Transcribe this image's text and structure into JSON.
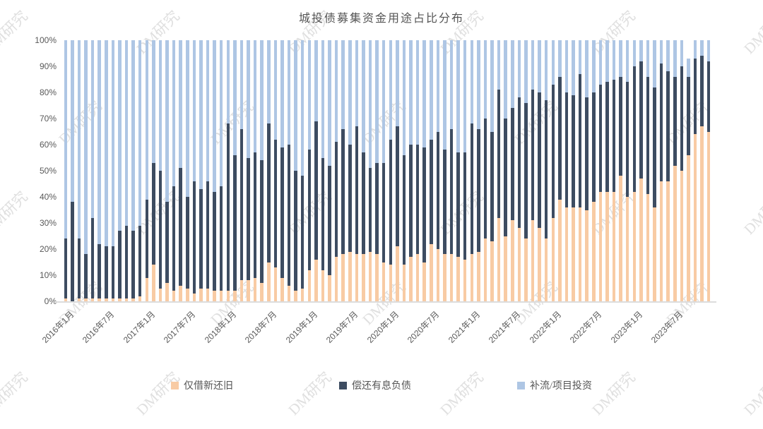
{
  "watermark": {
    "text": "DM研究",
    "color": "#e0e0e0"
  },
  "colors": {
    "axis_text": "#595959",
    "axis_line": "#dcdcdc",
    "title_text": "#555555",
    "only_refinance": "#f8cba4",
    "repay_debt": "#3d4c61",
    "working_capital": "#aec6e4"
  },
  "chart_data": {
    "type": "bar",
    "stacked": true,
    "title": "城投债募集资金用途占比分布",
    "xlabel": "",
    "ylabel": "",
    "ylim": [
      0,
      100
    ],
    "unit": "%",
    "grid": false,
    "legend_position": "bottom",
    "y_ticks": [
      "0%",
      "10%",
      "20%",
      "30%",
      "40%",
      "50%",
      "60%",
      "70%",
      "80%",
      "90%",
      "100%"
    ],
    "x_tick_labels": [
      "2016年1月",
      "2016年7月",
      "2017年1月",
      "2017年7月",
      "2018年1月",
      "2018年7月",
      "2019年1月",
      "2019年7月",
      "2020年1月",
      "2020年7月",
      "2021年1月",
      "2021年7月",
      "2022年1月",
      "2022年7月",
      "2023年1月",
      "2023年7月"
    ],
    "x_tick_every": 6,
    "x": [
      "2016年1月",
      "2016年2月",
      "2016年3月",
      "2016年4月",
      "2016年5月",
      "2016年6月",
      "2016年7月",
      "2016年8月",
      "2016年9月",
      "2016年10月",
      "2016年11月",
      "2016年12月",
      "2017年1月",
      "2017年2月",
      "2017年3月",
      "2017年4月",
      "2017年5月",
      "2017年6月",
      "2017年7月",
      "2017年8月",
      "2017年9月",
      "2017年10月",
      "2017年11月",
      "2017年12月",
      "2018年1月",
      "2018年2月",
      "2018年3月",
      "2018年4月",
      "2018年5月",
      "2018年6月",
      "2018年7月",
      "2018年8月",
      "2018年9月",
      "2018年10月",
      "2018年11月",
      "2018年12月",
      "2019年1月",
      "2019年2月",
      "2019年3月",
      "2019年4月",
      "2019年5月",
      "2019年6月",
      "2019年7月",
      "2019年8月",
      "2019年9月",
      "2019年10月",
      "2019年11月",
      "2019年12月",
      "2020年1月",
      "2020年2月",
      "2020年3月",
      "2020年4月",
      "2020年5月",
      "2020年6月",
      "2020年7月",
      "2020年8月",
      "2020年9月",
      "2020年10月",
      "2020年11月",
      "2020年12月",
      "2021年1月",
      "2021年2月",
      "2021年3月",
      "2021年4月",
      "2021年5月",
      "2021年6月",
      "2021年7月",
      "2021年8月",
      "2021年9月",
      "2021年10月",
      "2021年11月",
      "2021年12月",
      "2022年1月",
      "2022年2月",
      "2022年3月",
      "2022年4月",
      "2022年5月",
      "2022年6月",
      "2022年7月",
      "2022年8月",
      "2022年9月",
      "2022年10月",
      "2022年11月",
      "2022年12月",
      "2023年1月",
      "2023年2月",
      "2023年3月",
      "2023年4月",
      "2023年5月",
      "2023年6月",
      "2023年7月",
      "2023年8月",
      "2023年9月",
      "2023年10月",
      "2023年11月",
      "2023年12月"
    ],
    "series": [
      {
        "name": "仅借新还旧",
        "color": "#f8cba4",
        "values": [
          1,
          0,
          1,
          1,
          1,
          1,
          1,
          1,
          1,
          1,
          1,
          2,
          9,
          14,
          5,
          7,
          4,
          6,
          5,
          3,
          5,
          5,
          4,
          4,
          4,
          4,
          8,
          8,
          9,
          7,
          15,
          13,
          9,
          6,
          4,
          5,
          12,
          16,
          12,
          10,
          17,
          18,
          19,
          18,
          18,
          19,
          18,
          15,
          14,
          21,
          14,
          17,
          18,
          15,
          22,
          20,
          18,
          18,
          17,
          16,
          18,
          19,
          24,
          23,
          32,
          25,
          31,
          28,
          24,
          31,
          28,
          24,
          32,
          39,
          36,
          36,
          36,
          35,
          38,
          42,
          42,
          42,
          48,
          40,
          42,
          47,
          41,
          36,
          46,
          46,
          52,
          50,
          56,
          64,
          67,
          65
        ]
      },
      {
        "name": "偿还有息负债",
        "color": "#3d4c61",
        "values": [
          23,
          38,
          23,
          17,
          31,
          21,
          20,
          20,
          26,
          28,
          26,
          27,
          30,
          39,
          45,
          31,
          40,
          45,
          35,
          43,
          38,
          41,
          38,
          40,
          64,
          52,
          58,
          47,
          48,
          47,
          53,
          49,
          50,
          54,
          46,
          43,
          46,
          53,
          43,
          42,
          44,
          48,
          41,
          49,
          39,
          32,
          35,
          38,
          48,
          46,
          42,
          43,
          42,
          44,
          40,
          45,
          40,
          48,
          40,
          41,
          50,
          47,
          46,
          42,
          49,
          45,
          43,
          50,
          52,
          50,
          52,
          53,
          51,
          47,
          44,
          43,
          51,
          43,
          42,
          41,
          42,
          43,
          38,
          44,
          48,
          45,
          45,
          46,
          45,
          42,
          34,
          40,
          30,
          29,
          27,
          27
        ]
      },
      {
        "name": "补流/项目投资",
        "color": "#aec6e4",
        "values": [
          76,
          62,
          76,
          82,
          68,
          78,
          79,
          79,
          73,
          71,
          73,
          71,
          61,
          47,
          50,
          62,
          56,
          49,
          60,
          54,
          57,
          54,
          58,
          56,
          32,
          44,
          34,
          45,
          43,
          46,
          32,
          38,
          41,
          40,
          50,
          52,
          42,
          31,
          45,
          48,
          39,
          34,
          40,
          33,
          43,
          49,
          47,
          47,
          38,
          33,
          44,
          40,
          40,
          41,
          38,
          35,
          42,
          34,
          43,
          43,
          32,
          34,
          30,
          35,
          19,
          30,
          26,
          22,
          24,
          19,
          20,
          23,
          17,
          14,
          20,
          21,
          13,
          22,
          20,
          17,
          16,
          15,
          14,
          16,
          10,
          8,
          14,
          18,
          9,
          12,
          14,
          10,
          7,
          7,
          6,
          8
        ]
      }
    ]
  }
}
